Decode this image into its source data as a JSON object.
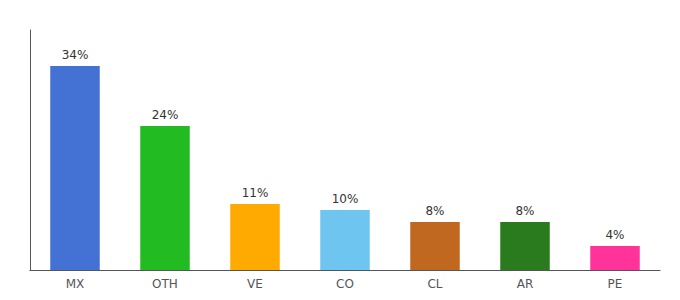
{
  "chart_data": {
    "type": "bar",
    "categories": [
      "MX",
      "OTH",
      "VE",
      "CO",
      "CL",
      "AR",
      "PE"
    ],
    "values": [
      34,
      24,
      11,
      10,
      8,
      8,
      4
    ],
    "value_labels": [
      "34%",
      "24%",
      "11%",
      "10%",
      "8%",
      "8%",
      "4%"
    ],
    "colors": [
      "#4472d4",
      "#22bb22",
      "#ffaa00",
      "#6ec6f0",
      "#c06820",
      "#2a7a1e",
      "#ff3399"
    ],
    "ylim": [
      0,
      40
    ],
    "grid": false,
    "data_labels": true,
    "tick_labels": "x"
  }
}
